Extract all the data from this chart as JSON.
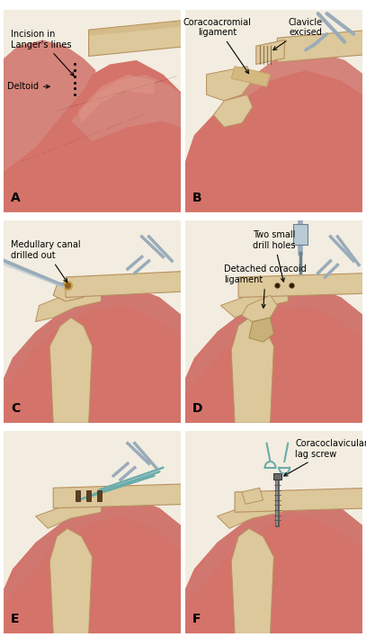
{
  "background_color": "#f5f0e8",
  "white_bg": "#ffffff",
  "panel_bg": "#f2ede0",
  "muscle_colors": {
    "main": "#d4736a",
    "mid": "#c96058",
    "dark": "#b84a40",
    "light": "#e08878",
    "highlight": "#e8a090"
  },
  "bone_colors": {
    "main": "#dcc89a",
    "dark": "#c8a870",
    "shadow": "#b89060",
    "marrow": "#c8a050"
  },
  "tool_colors": {
    "metal": "#9aabba",
    "dark_metal": "#6a8090",
    "light_metal": "#b8cad4"
  },
  "suture_color": "#6aacac",
  "annotation_fontsize": 7.0,
  "panel_label_fontsize": 10,
  "panels": [
    "A",
    "B",
    "C",
    "D",
    "E",
    "F"
  ],
  "panel_border": "#cccccc"
}
